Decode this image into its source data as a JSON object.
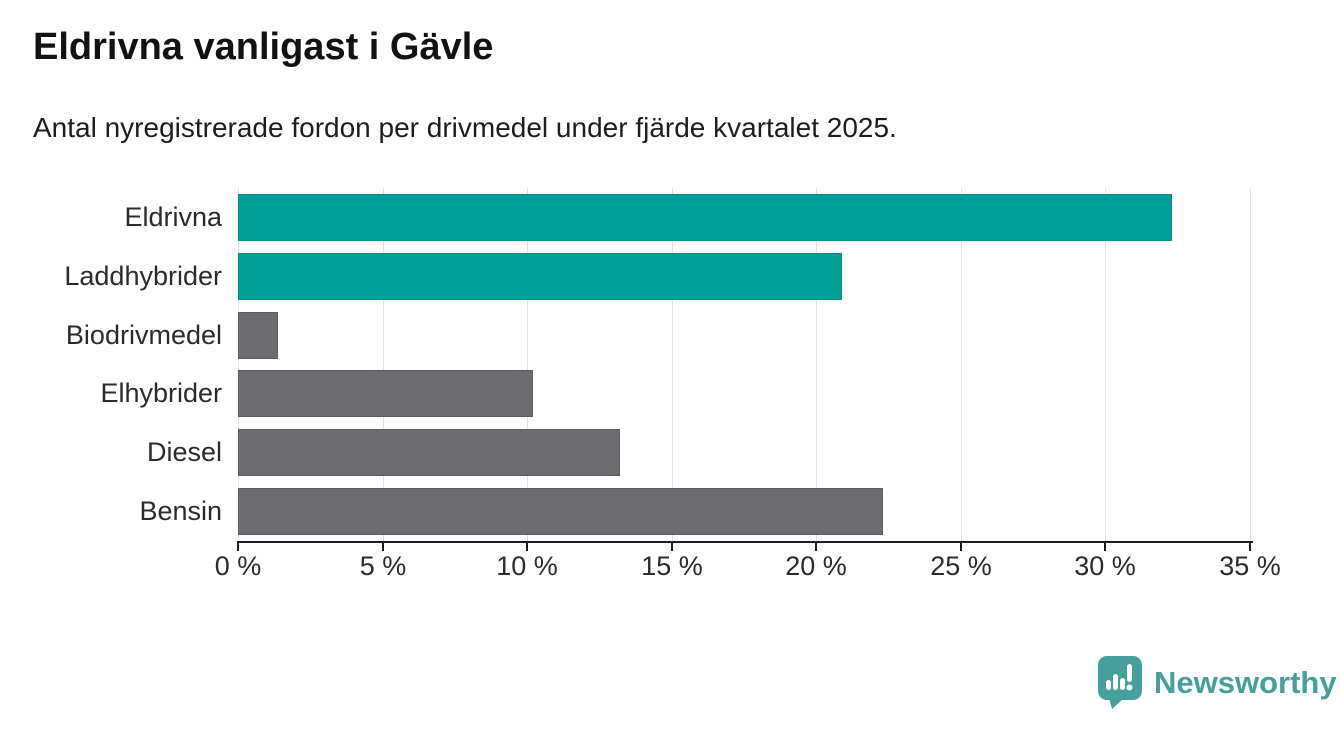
{
  "header": {
    "title": "Eldrivna vanligast i Gävle",
    "subtitle": "Antal nyregistrerade fordon per drivmedel under fjärde kvartalet 2025."
  },
  "chart_data": {
    "type": "bar",
    "orientation": "horizontal",
    "title": "Eldrivna vanligast i Gävle",
    "subtitle": "Antal nyregistrerade fordon per drivmedel under fjärde kvartalet 2025.",
    "categories": [
      "Eldrivna",
      "Laddhybrider",
      "Biodrivmedel",
      "Elhybrider",
      "Diesel",
      "Bensin"
    ],
    "values": [
      32.3,
      20.9,
      1.4,
      10.2,
      13.2,
      22.3
    ],
    "unit": "%",
    "bar_colors": [
      "#009e96",
      "#009e96",
      "#6b6b70",
      "#6b6b70",
      "#6b6b70",
      "#6b6b70"
    ],
    "bar_border_colors": [
      "#0c8d86",
      "#0c8d86",
      "#5c5c62",
      "#5c5c62",
      "#5c5c62",
      "#5c5c62"
    ],
    "highlight_color": "#009e96",
    "default_color": "#6b6b70",
    "xlim": [
      0,
      35
    ],
    "x_tick_step": 5,
    "x_tick_labels": [
      "0 %",
      "5 %",
      "10 %",
      "15 %",
      "20 %",
      "25 %",
      "30 %",
      "35 %"
    ],
    "gridline_color": "#e2e2e2",
    "axis_color": "#1b1b1b",
    "grid": "vertical",
    "legend": "none",
    "value_labels": "none"
  },
  "footer": {
    "brand_name": "Newsworthy",
    "brand_color": "#45a09c",
    "logo_icon": "newsworthy-speech-bubble-chart-icon"
  }
}
